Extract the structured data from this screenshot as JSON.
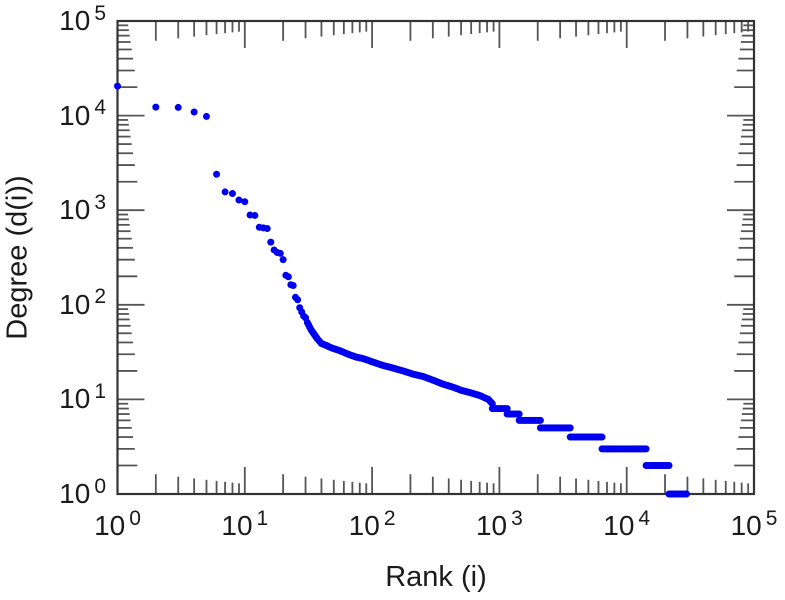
{
  "figure": {
    "background": "#ffffff",
    "frame_color": "#333333",
    "tick_color": "#555555",
    "text_color": "#1a1a1a"
  },
  "chart_data": {
    "type": "scatter",
    "title": "",
    "xlabel": "Rank (i)",
    "ylabel": "Degree (d(i))",
    "x_scale": "log",
    "y_scale": "log",
    "xlim": [
      1,
      100000
    ],
    "ylim": [
      1,
      100000
    ],
    "grid": false,
    "legend": null,
    "tick_base": "10",
    "x_tick_exponents": [
      0,
      1,
      2,
      3,
      4,
      5
    ],
    "y_tick_exponents": [
      0,
      1,
      2,
      3,
      4,
      5
    ],
    "marker": {
      "shape": "circle",
      "color": "#0000f0",
      "radius_px": 3.5
    },
    "points": [
      [
        1,
        20500
      ],
      [
        2,
        12300
      ],
      [
        3,
        12200
      ],
      [
        4,
        10900
      ],
      [
        5,
        9800
      ],
      [
        6,
        2400
      ],
      [
        7,
        1560
      ],
      [
        8,
        1500
      ],
      [
        9,
        1280
      ],
      [
        10,
        1230
      ],
      [
        11,
        890
      ],
      [
        12,
        880
      ],
      [
        13,
        660
      ],
      [
        14,
        650
      ],
      [
        15,
        640
      ],
      [
        16,
        460
      ],
      [
        17,
        380
      ],
      [
        18,
        357
      ],
      [
        19,
        350
      ],
      [
        20,
        300
      ],
      [
        21,
        205
      ],
      [
        22,
        198
      ],
      [
        23,
        163
      ],
      [
        24,
        160
      ],
      [
        25,
        120
      ],
      [
        26,
        113
      ],
      [
        27,
        93
      ],
      [
        28,
        84
      ],
      [
        29,
        76
      ],
      [
        30,
        73
      ]
    ],
    "tail_anchors": [
      [
        31,
        65
      ],
      [
        33,
        55
      ],
      [
        35,
        49
      ],
      [
        37,
        44
      ],
      [
        40,
        39
      ],
      [
        44,
        37
      ],
      [
        48,
        35
      ],
      [
        55,
        33
      ],
      [
        65,
        30
      ],
      [
        75,
        28
      ],
      [
        85,
        27
      ],
      [
        100,
        25
      ],
      [
        120,
        23
      ],
      [
        145,
        21.5
      ],
      [
        175,
        20
      ],
      [
        210,
        18.5
      ],
      [
        250,
        17.5
      ],
      [
        300,
        16
      ],
      [
        360,
        14.5
      ],
      [
        430,
        13.5
      ],
      [
        500,
        12.5
      ],
      [
        600,
        11.7
      ],
      [
        700,
        11
      ],
      [
        820,
        10
      ],
      [
        880,
        9
      ],
      [
        880,
        8
      ],
      [
        1150,
        8
      ],
      [
        1150,
        7
      ],
      [
        1430,
        7
      ],
      [
        1430,
        6
      ],
      [
        2100,
        6
      ],
      [
        2100,
        5
      ],
      [
        3600,
        5
      ],
      [
        3600,
        4
      ],
      [
        6400,
        4
      ],
      [
        6400,
        3
      ],
      [
        14200,
        3
      ],
      [
        14200,
        2
      ],
      [
        21500,
        2
      ],
      [
        21500,
        1
      ],
      [
        29500,
        1
      ]
    ]
  }
}
